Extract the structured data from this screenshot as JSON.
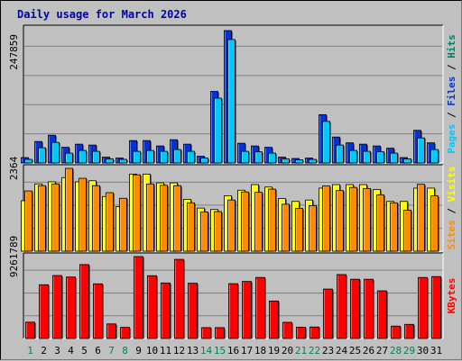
{
  "title": "Daily usage for March 2026",
  "colors": {
    "background": "#c0c0c0",
    "plot_bg": "#c0c0c0",
    "pages": "#00c8ff",
    "files": "#0033dd",
    "hits": "#00806b",
    "sites": "#ff8c00",
    "visits": "#ffff00",
    "kbytes": "#ff0000",
    "weekday": "#000000",
    "weekend": "#008060",
    "title": "#0000aa"
  },
  "chart_data": [
    {
      "type": "bar",
      "name": "hits-panel",
      "ytick": "247859",
      "ymax": 300000,
      "x": [
        1,
        2,
        3,
        4,
        5,
        6,
        7,
        8,
        9,
        10,
        11,
        12,
        13,
        14,
        15,
        16,
        17,
        18,
        19,
        20,
        21,
        22,
        23,
        24,
        25,
        26,
        27,
        28,
        29,
        30,
        31
      ],
      "series": [
        {
          "name": "Files",
          "color": "#0033dd",
          "values": [
            12000,
            48000,
            62000,
            35000,
            42000,
            40000,
            13000,
            11000,
            50000,
            50000,
            38000,
            52000,
            42000,
            15000,
            160000,
            296000,
            44000,
            38000,
            35000,
            13000,
            10000,
            11000,
            108000,
            58000,
            45000,
            42000,
            38000,
            33000,
            12000,
            73000,
            45000
          ]
        },
        {
          "name": "Pages",
          "color": "#00c8ff",
          "values": [
            8000,
            34000,
            46000,
            22000,
            28000,
            26000,
            9000,
            8000,
            26000,
            28000,
            26000,
            30000,
            26000,
            11000,
            145000,
            276000,
            26000,
            25000,
            22000,
            9000,
            7000,
            8000,
            93000,
            40000,
            28000,
            26000,
            25000,
            22000,
            9000,
            56000,
            30000
          ]
        }
      ],
      "side_labels": [
        "Hits",
        "Files",
        "Pages"
      ]
    },
    {
      "type": "bar",
      "name": "sites-panel",
      "ytick": "2364",
      "ymax": 2364,
      "x": [
        1,
        2,
        3,
        4,
        5,
        6,
        7,
        8,
        9,
        10,
        11,
        12,
        13,
        14,
        15,
        16,
        17,
        18,
        19,
        20,
        21,
        22,
        23,
        24,
        25,
        26,
        27,
        28,
        29,
        30,
        31
      ],
      "series": [
        {
          "name": "Visits",
          "color": "#ffff00",
          "values": [
            1440,
            1920,
            1980,
            2100,
            1980,
            2010,
            1560,
            1270,
            2200,
            2200,
            1950,
            1950,
            1480,
            1230,
            1190,
            1580,
            1740,
            1900,
            1830,
            1500,
            1420,
            1460,
            1800,
            1900,
            1900,
            1900,
            1760,
            1420,
            1420,
            1800,
            1800
          ]
        },
        {
          "name": "Sites",
          "color": "#ff8c00",
          "values": [
            1720,
            1870,
            1920,
            2364,
            2080,
            1870,
            1670,
            1510,
            2180,
            1920,
            1880,
            1870,
            1380,
            1120,
            1130,
            1460,
            1690,
            1680,
            1770,
            1340,
            1220,
            1300,
            1860,
            1730,
            1820,
            1790,
            1610,
            1380,
            1170,
            1910,
            1580
          ]
        }
      ],
      "side_labels": [
        "Visits",
        "Sites"
      ]
    },
    {
      "type": "bar",
      "name": "kbytes-panel",
      "ytick": "9261789",
      "ymax": 9261789,
      "x": [
        1,
        2,
        3,
        4,
        5,
        6,
        7,
        8,
        9,
        10,
        11,
        12,
        13,
        14,
        15,
        16,
        17,
        18,
        19,
        20,
        21,
        22,
        23,
        24,
        25,
        26,
        27,
        28,
        29,
        30,
        31
      ],
      "series": [
        {
          "name": "KBytes",
          "color": "#ff0000",
          "values": [
            1850000,
            6080000,
            7120000,
            6950000,
            8360000,
            6180000,
            1650000,
            1260000,
            9261789,
            7100000,
            6280000,
            8950000,
            6250000,
            1230000,
            1230000,
            6200000,
            6450000,
            6900000,
            4240000,
            1830000,
            1280000,
            1300000,
            5590000,
            7230000,
            6700000,
            6700000,
            5390000,
            1400000,
            1600000,
            6900000,
            7000000
          ]
        }
      ],
      "side_labels": [
        "KBytes"
      ]
    }
  ],
  "days": [
    "1",
    "2",
    "3",
    "4",
    "5",
    "6",
    "7",
    "8",
    "9",
    "10",
    "11",
    "12",
    "13",
    "14",
    "15",
    "16",
    "17",
    "18",
    "19",
    "20",
    "21",
    "22",
    "23",
    "24",
    "25",
    "26",
    "27",
    "28",
    "29",
    "30",
    "31"
  ],
  "weekend_days": [
    1,
    7,
    8,
    14,
    15,
    21,
    22,
    28,
    29
  ]
}
